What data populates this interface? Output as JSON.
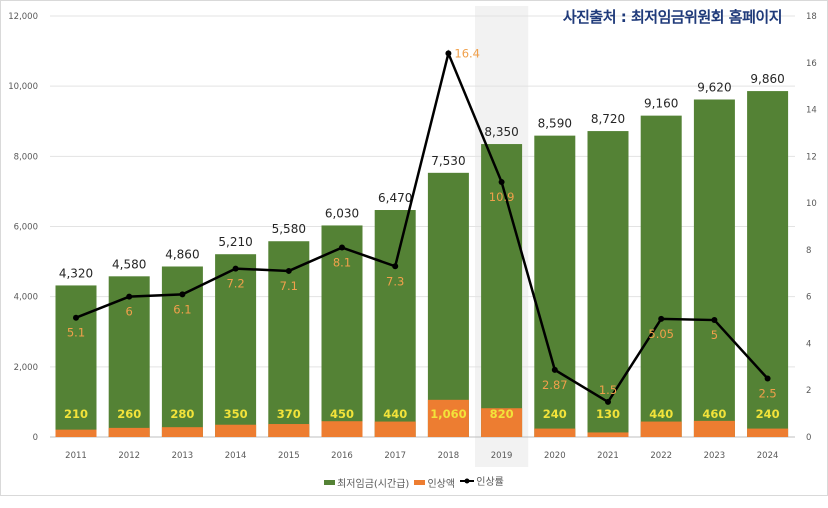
{
  "source_note": "사진출처 : 최저임금위원회 홈페이지",
  "chart_data": {
    "type": "bar",
    "categories": [
      "2011",
      "2012",
      "2013",
      "2014",
      "2015",
      "2016",
      "2017",
      "2018",
      "2019",
      "2020",
      "2021",
      "2022",
      "2023",
      "2024"
    ],
    "series": [
      {
        "name": "최저임금(시간급)",
        "type": "bar",
        "axis": "left",
        "color": "#548235",
        "values": [
          4320,
          4580,
          4860,
          5210,
          5580,
          6030,
          6470,
          7530,
          8350,
          8590,
          8720,
          9160,
          9620,
          9860
        ],
        "labels": [
          "4,320",
          "4,580",
          "4,860",
          "5,210",
          "5,580",
          "6,030",
          "6,470",
          "7,530",
          "8,350",
          "8,590",
          "8,720",
          "9,160",
          "9,620",
          "9,860"
        ]
      },
      {
        "name": "인상액",
        "type": "bar",
        "axis": "left",
        "color": "#ed7d31",
        "values": [
          210,
          260,
          280,
          350,
          370,
          450,
          440,
          1060,
          820,
          240,
          130,
          440,
          460,
          240
        ],
        "labels": [
          "210",
          "260",
          "280",
          "350",
          "370",
          "450",
          "440",
          "1,060",
          "820",
          "240",
          "130",
          "440",
          "460",
          "240"
        ]
      },
      {
        "name": "인상률",
        "type": "line",
        "axis": "right",
        "color": "#000000",
        "values": [
          5.1,
          6,
          6.1,
          7.2,
          7.1,
          8.1,
          7.3,
          16.4,
          10.9,
          2.87,
          1.5,
          5.05,
          5,
          2.5
        ],
        "labels": [
          "5.1",
          "6",
          "6.1",
          "7.2",
          "7.1",
          "8.1",
          "7.3",
          "16.4",
          "10.9",
          "2.87",
          "1.5",
          "5.05",
          "5",
          "2.5"
        ]
      }
    ],
    "y_left": {
      "ylim": [
        0,
        12000
      ],
      "ticks": [
        "0",
        "2,000",
        "4,000",
        "6,000",
        "8,000",
        "10,000",
        "12,000"
      ]
    },
    "y_right": {
      "ylim": [
        0,
        18
      ],
      "ticks": [
        "0",
        "2",
        "4",
        "6",
        "8",
        "10",
        "12",
        "14",
        "16",
        "18"
      ]
    },
    "highlighted_category": "2019",
    "grid": true,
    "legend": "bottom"
  }
}
